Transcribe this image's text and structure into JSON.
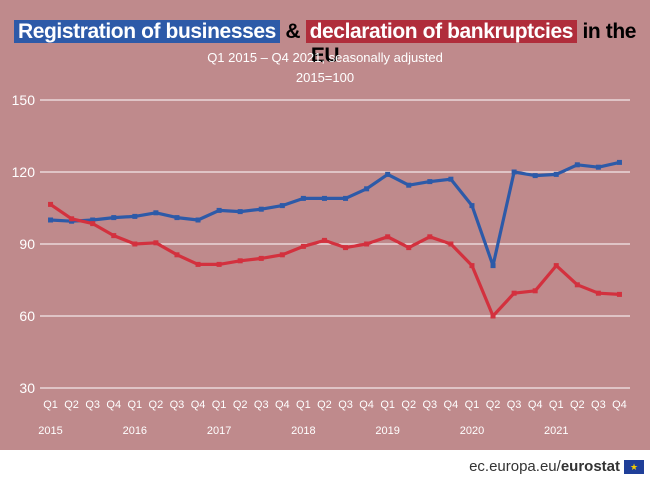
{
  "header": {
    "title_part1": "Registration of businesses",
    "title_amp": "&",
    "title_part2": "declaration of bankruptcies",
    "title_part3": "in the EU",
    "subtitle": "Q1 2015 – Q4 2021, seasonally adjusted",
    "subtitle2": "2015=100"
  },
  "footer": {
    "url_prefix": "ec.europa.eu/",
    "url_brand": "eurostat",
    "flag_icon": "eu-flag-icon"
  },
  "colors": {
    "background": "#bf8a8c",
    "registrations": "#2d5aa8",
    "bankruptcies": "#d3313e",
    "grid": "#ffffff"
  },
  "chart_data": {
    "type": "line",
    "ylim": [
      30,
      150
    ],
    "yticks": [
      30,
      60,
      90,
      120,
      150
    ],
    "grid": "horizontal",
    "quarters": [
      "Q1",
      "Q2",
      "Q3",
      "Q4",
      "Q1",
      "Q2",
      "Q3",
      "Q4",
      "Q1",
      "Q2",
      "Q3",
      "Q4",
      "Q1",
      "Q2",
      "Q3",
      "Q4",
      "Q1",
      "Q2",
      "Q3",
      "Q4",
      "Q1",
      "Q2",
      "Q3",
      "Q4",
      "Q1",
      "Q2",
      "Q3",
      "Q4"
    ],
    "years": [
      "2015",
      "2016",
      "2017",
      "2018",
      "2019",
      "2020",
      "2021"
    ],
    "series": [
      {
        "key": "registrations",
        "values": [
          100,
          99.5,
          100,
          101,
          101.5,
          103,
          101,
          100,
          104,
          103.5,
          104.5,
          106,
          109,
          109,
          109,
          113,
          119,
          114.5,
          116,
          117,
          106,
          81,
          120,
          118.5,
          119,
          123,
          122,
          124
        ]
      },
      {
        "key": "bankruptcies",
        "values": [
          106.5,
          100.5,
          98.5,
          93.5,
          90,
          90.5,
          85.5,
          81.5,
          81.5,
          83,
          84,
          85.5,
          89,
          91.5,
          88.5,
          90,
          93,
          88.5,
          93,
          90,
          81,
          60,
          69.5,
          70.5,
          81,
          73,
          69.5,
          69
        ]
      }
    ]
  }
}
